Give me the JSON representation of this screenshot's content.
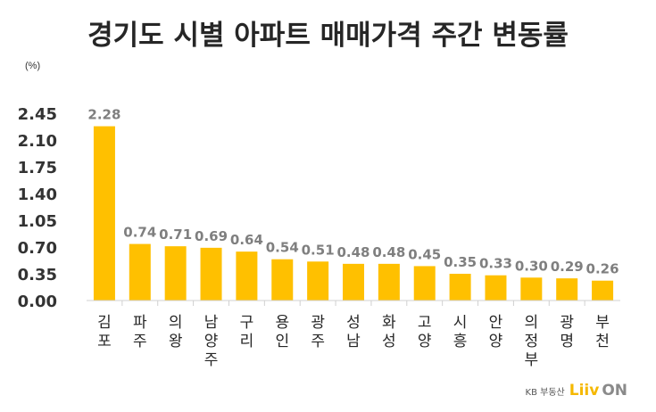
{
  "title": "경기도 시별 아파트 매매가격 주간 변동률",
  "unit": "(%)",
  "brand": {
    "kb": "KB 부동산",
    "liiv": "Liiv",
    "on": "ON"
  },
  "colors": {
    "bar": "#FFC000",
    "label": "#7f7f7f",
    "axis": "#333333"
  },
  "chart_data": {
    "type": "bar",
    "title": "경기도 시별 아파트 매매가격 주간 변동률",
    "ylabel": "(%)",
    "xlabel": "",
    "categories": [
      "김포",
      "파주",
      "의왕",
      "남양주",
      "구리",
      "용인",
      "광주",
      "성남",
      "화성",
      "고양",
      "시흥",
      "안양",
      "의정부",
      "광명",
      "부천"
    ],
    "values": [
      2.28,
      0.74,
      0.71,
      0.69,
      0.64,
      0.54,
      0.51,
      0.48,
      0.48,
      0.45,
      0.35,
      0.33,
      0.3,
      0.29,
      0.26
    ],
    "value_labels": [
      "2.28",
      "0.74",
      "0.71",
      "0.69",
      "0.64",
      "0.54",
      "0.51",
      "0.48",
      "0.48",
      "0.45",
      "0.35",
      "0.33",
      "0.30",
      "0.29",
      "0.26"
    ],
    "yticks": [
      "0.00",
      "0.35",
      "0.70",
      "1.05",
      "1.40",
      "1.75",
      "2.10",
      "2.45"
    ],
    "ylim": [
      0,
      2.45
    ],
    "grid": false,
    "legend": "none"
  }
}
